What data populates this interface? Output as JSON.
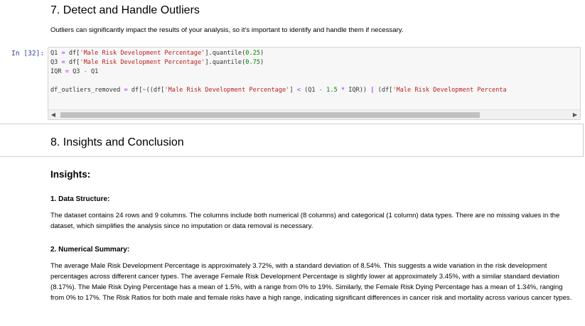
{
  "sections": {
    "outliers_heading": "7. Detect and Handle Outliers",
    "outliers_text": "Outliers can significantly impact the results of your analysis, so it's important to identify and handle them if necessary.",
    "insights_heading": "8. Insights and Conclusion"
  },
  "code_cell": {
    "prompt": "In [32]:",
    "lines": [
      "Q1 = df['Male Risk Development Percentage'].quantile(0.25)",
      "Q3 = df['Male Risk Development Percentage'].quantile(0.75)",
      "IQR = Q3 - Q1",
      "",
      "df_outliers_removed = df[~((df['Male Risk Development Percentage'] < (Q1 - 1.5 * IQR)) | (df['Male Risk Development Percenta"
    ]
  },
  "insights": {
    "title": "Insights:",
    "items": [
      {
        "heading": "1. Data Structure:",
        "body": "The dataset contains 24 rows and 9 columns. The columns include both numerical (8 columns) and categorical (1 column) data types. There are no missing values in the dataset, which simplifies the analysis since no imputation or data removal is necessary."
      },
      {
        "heading": "2. Numerical Summary:",
        "body": "The average Male Risk Development Percentage is approximately 3.72%, with a standard deviation of 8.54%. This suggests a wide variation in the risk development percentages across different cancer types. The average Female Risk Development Percentage is slightly lower at approximately 3.45%, with a similar standard deviation (8.17%). The Male Risk Dying Percentage has a mean of 1.5%, with a range from 0% to 19%. Similarly, the Female Risk Dying Percentage has a mean of 1.34%, ranging from 0% to 17%. The Risk Ratios for both male and female risks have a high range, indicating significant differences in cancer risk and mortality across various cancer types."
      }
    ]
  },
  "scrollbar": {
    "left_arrow": "◀",
    "right_arrow": "▶"
  }
}
